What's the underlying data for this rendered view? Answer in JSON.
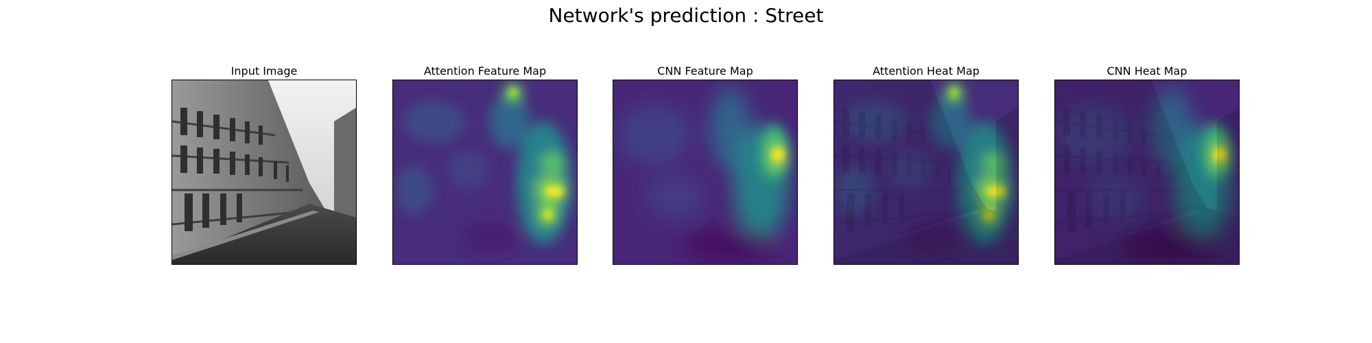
{
  "figure": {
    "title": "Network's prediction : Street"
  },
  "panels": [
    {
      "title": "Input Image",
      "picture": "grayscale-street-photo"
    },
    {
      "title": "Attention Feature Map",
      "picture": "viridis-heatmap"
    },
    {
      "title": "CNN Feature Map",
      "picture": "viridis-heatmap"
    },
    {
      "title": "Attention Heat Map",
      "picture": "viridis-heatmap-over-street"
    },
    {
      "title": "CNN Heat Map",
      "picture": "viridis-heatmap-over-street"
    }
  ],
  "colors": {
    "viridis_low": "#440154",
    "viridis_mid": "#21918c",
    "viridis_high": "#fde725"
  }
}
